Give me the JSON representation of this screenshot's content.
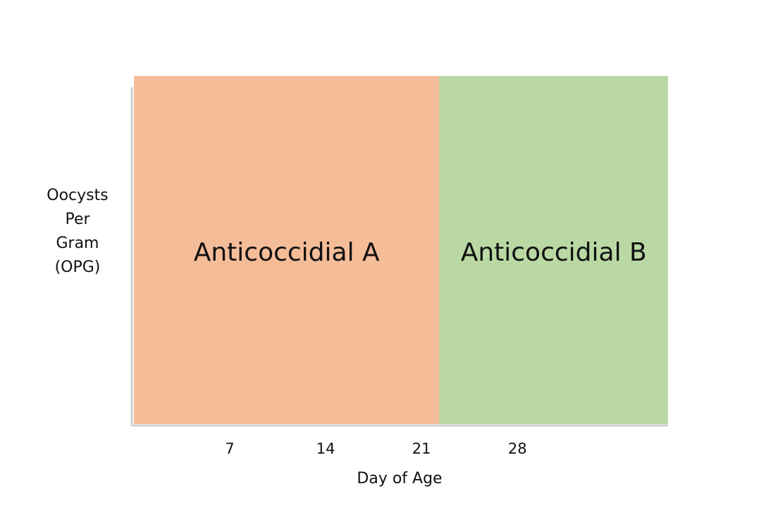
{
  "chart_data": {
    "type": "area",
    "title": "",
    "xlabel": "Day of Age",
    "ylabel_lines": [
      "Oocysts",
      "Per",
      "Gram",
      "(OPG)"
    ],
    "x_ticks": [
      7,
      14,
      21,
      28
    ],
    "xlim": [
      0,
      39
    ],
    "regions": [
      {
        "label": "Anticoccidial A",
        "x_start": 0,
        "x_end": 22.3,
        "color": "#f5bc98"
      },
      {
        "label": "Anticoccidial B",
        "x_start": 22.3,
        "x_end": 39,
        "color": "#b9d8a3"
      }
    ],
    "grid": false,
    "legend": "none"
  }
}
